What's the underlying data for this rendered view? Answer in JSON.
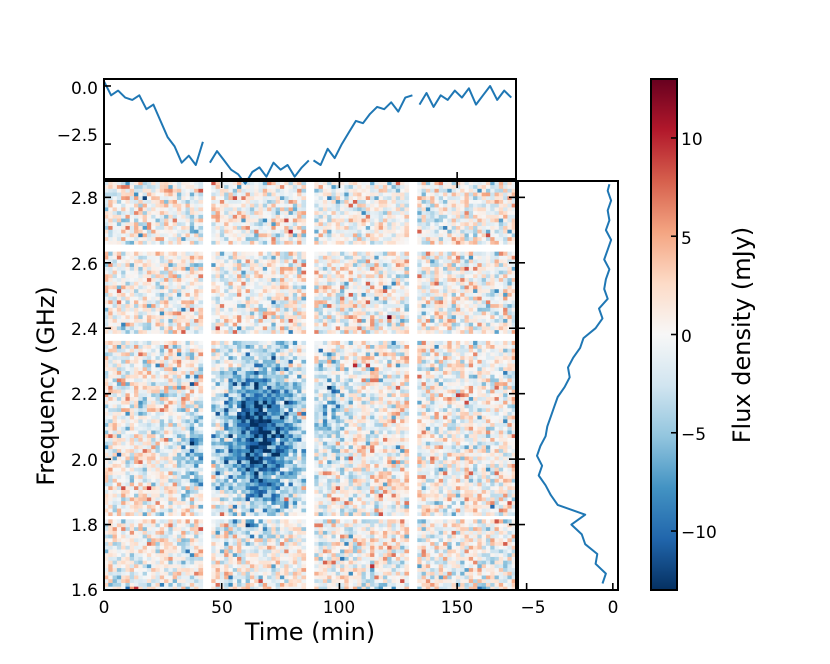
{
  "chart_data": [
    {
      "id": "top_lightcurve",
      "type": "line",
      "xlim": [
        0,
        175
      ],
      "ylim": [
        -4.0,
        0.3
      ],
      "yticks": [
        0.0,
        -2.5
      ],
      "ytick_labels": [
        "0.0",
        "−2.5"
      ],
      "xticks": [
        0,
        50,
        100,
        150
      ],
      "segments": [
        {
          "name": "block-1",
          "x": [
            0,
            3,
            6,
            9,
            12,
            15,
            18,
            21,
            24,
            27,
            30,
            33,
            36,
            39,
            42
          ],
          "y": [
            0.2,
            -0.4,
            -0.2,
            -0.5,
            -0.6,
            -0.4,
            -1.0,
            -0.8,
            -1.5,
            -2.2,
            -2.6,
            -3.3,
            -3.0,
            -3.4,
            -2.4
          ]
        },
        {
          "name": "block-2",
          "x": [
            45,
            48,
            51,
            54,
            57,
            60,
            63,
            66,
            69,
            72,
            75,
            78,
            81,
            84,
            87
          ],
          "y": [
            -3.3,
            -2.8,
            -3.2,
            -3.6,
            -3.8,
            -4.2,
            -3.7,
            -3.5,
            -3.9,
            -3.3,
            -3.6,
            -3.4,
            -3.9,
            -3.5,
            -3.2
          ]
        },
        {
          "name": "block-3",
          "x": [
            89,
            92,
            95,
            98,
            101,
            104,
            107,
            110,
            113,
            116,
            119,
            122,
            125,
            128,
            131
          ],
          "y": [
            -3.2,
            -3.4,
            -2.7,
            -3.1,
            -2.5,
            -2.0,
            -1.5,
            -1.6,
            -1.2,
            -0.9,
            -1.0,
            -0.7,
            -1.1,
            -0.5,
            -0.4
          ]
        },
        {
          "name": "block-4",
          "x": [
            134,
            137,
            140,
            143,
            146,
            149,
            152,
            155,
            158,
            161,
            164,
            167,
            170,
            173
          ],
          "y": [
            -0.8,
            -0.3,
            -0.9,
            -0.4,
            -0.6,
            -0.2,
            -0.5,
            -0.1,
            -0.8,
            -0.4,
            0.0,
            -0.6,
            -0.2,
            -0.5
          ]
        }
      ]
    },
    {
      "id": "dynamic_spectrum",
      "type": "heatmap",
      "xlabel": "Time (min)",
      "ylabel": "Frequency (GHz)",
      "xlim": [
        0,
        175
      ],
      "ylim": [
        1.6,
        2.85
      ],
      "xticks": [
        0,
        50,
        100,
        150
      ],
      "xtick_labels": [
        "0",
        "50",
        "100",
        "150"
      ],
      "yticks": [
        1.6,
        1.8,
        2.0,
        2.2,
        2.4,
        2.6,
        2.8
      ],
      "ytick_labels": [
        "1.6",
        "1.8",
        "2.0",
        "2.2",
        "2.4",
        "2.6",
        "2.8"
      ],
      "time_gaps_min": [
        [
          42,
          45
        ],
        [
          86,
          89
        ],
        [
          130,
          133
        ]
      ],
      "freq_gaps_ghz": [
        [
          1.818,
          1.832
        ],
        [
          2.36,
          2.38
        ],
        [
          2.635,
          2.655
        ]
      ],
      "bursts": [
        {
          "t0_min": 30,
          "t1_min": 45,
          "f0_ghz": 1.88,
          "f1_ghz": 2.15,
          "peak_mjy": -6
        },
        {
          "t0_min": 45,
          "t1_min": 87,
          "f0_ghz": 1.8,
          "f1_ghz": 2.35,
          "peak_mjy": -12
        },
        {
          "t0_min": 89,
          "t1_min": 105,
          "f0_ghz": 2.0,
          "f1_ghz": 2.34,
          "peak_mjy": -5
        }
      ],
      "noise_rms_mjy": 3
    },
    {
      "id": "right_spectrum",
      "type": "line",
      "xlim": [
        -5.5,
        0.3
      ],
      "xticks": [
        -5,
        0
      ],
      "xtick_labels": [
        "−5",
        "0"
      ],
      "freq": [
        1.62,
        1.65,
        1.68,
        1.71,
        1.74,
        1.77,
        1.8,
        1.83,
        1.86,
        1.89,
        1.92,
        1.95,
        1.98,
        2.01,
        2.04,
        2.07,
        2.1,
        2.13,
        2.16,
        2.19,
        2.22,
        2.25,
        2.28,
        2.31,
        2.34,
        2.37,
        2.4,
        2.43,
        2.46,
        2.49,
        2.52,
        2.55,
        2.58,
        2.61,
        2.64,
        2.67,
        2.7,
        2.73,
        2.76,
        2.79,
        2.82,
        2.84
      ],
      "flux": [
        -0.6,
        -0.4,
        -1.0,
        -0.9,
        -1.6,
        -1.8,
        -2.4,
        -1.6,
        -3.2,
        -3.6,
        -3.9,
        -4.3,
        -4.1,
        -4.4,
        -4.2,
        -3.9,
        -3.8,
        -3.6,
        -3.4,
        -3.2,
        -2.8,
        -2.5,
        -2.6,
        -2.3,
        -1.9,
        -1.7,
        -1.0,
        -0.6,
        -0.8,
        -0.3,
        -0.5,
        -0.4,
        -0.2,
        -0.5,
        -0.3,
        -0.1,
        -0.4,
        -0.2,
        -0.3,
        -0.1,
        -0.3,
        -0.2
      ]
    },
    {
      "id": "colorbar",
      "type": "colorbar",
      "label": "Flux density (mJy)",
      "range": [
        -13,
        13
      ],
      "ticks": [
        10,
        5,
        0,
        -5,
        -10
      ],
      "tick_labels": [
        "10",
        "5",
        "0",
        "−5",
        "−10"
      ],
      "colormap": "RdBu_r",
      "stops": [
        "#053061",
        "#2166ac",
        "#4393c3",
        "#92c5de",
        "#d1e5f0",
        "#f7f7f7",
        "#fddbc7",
        "#f4a582",
        "#d6604d",
        "#b2182b",
        "#67001f"
      ]
    }
  ]
}
